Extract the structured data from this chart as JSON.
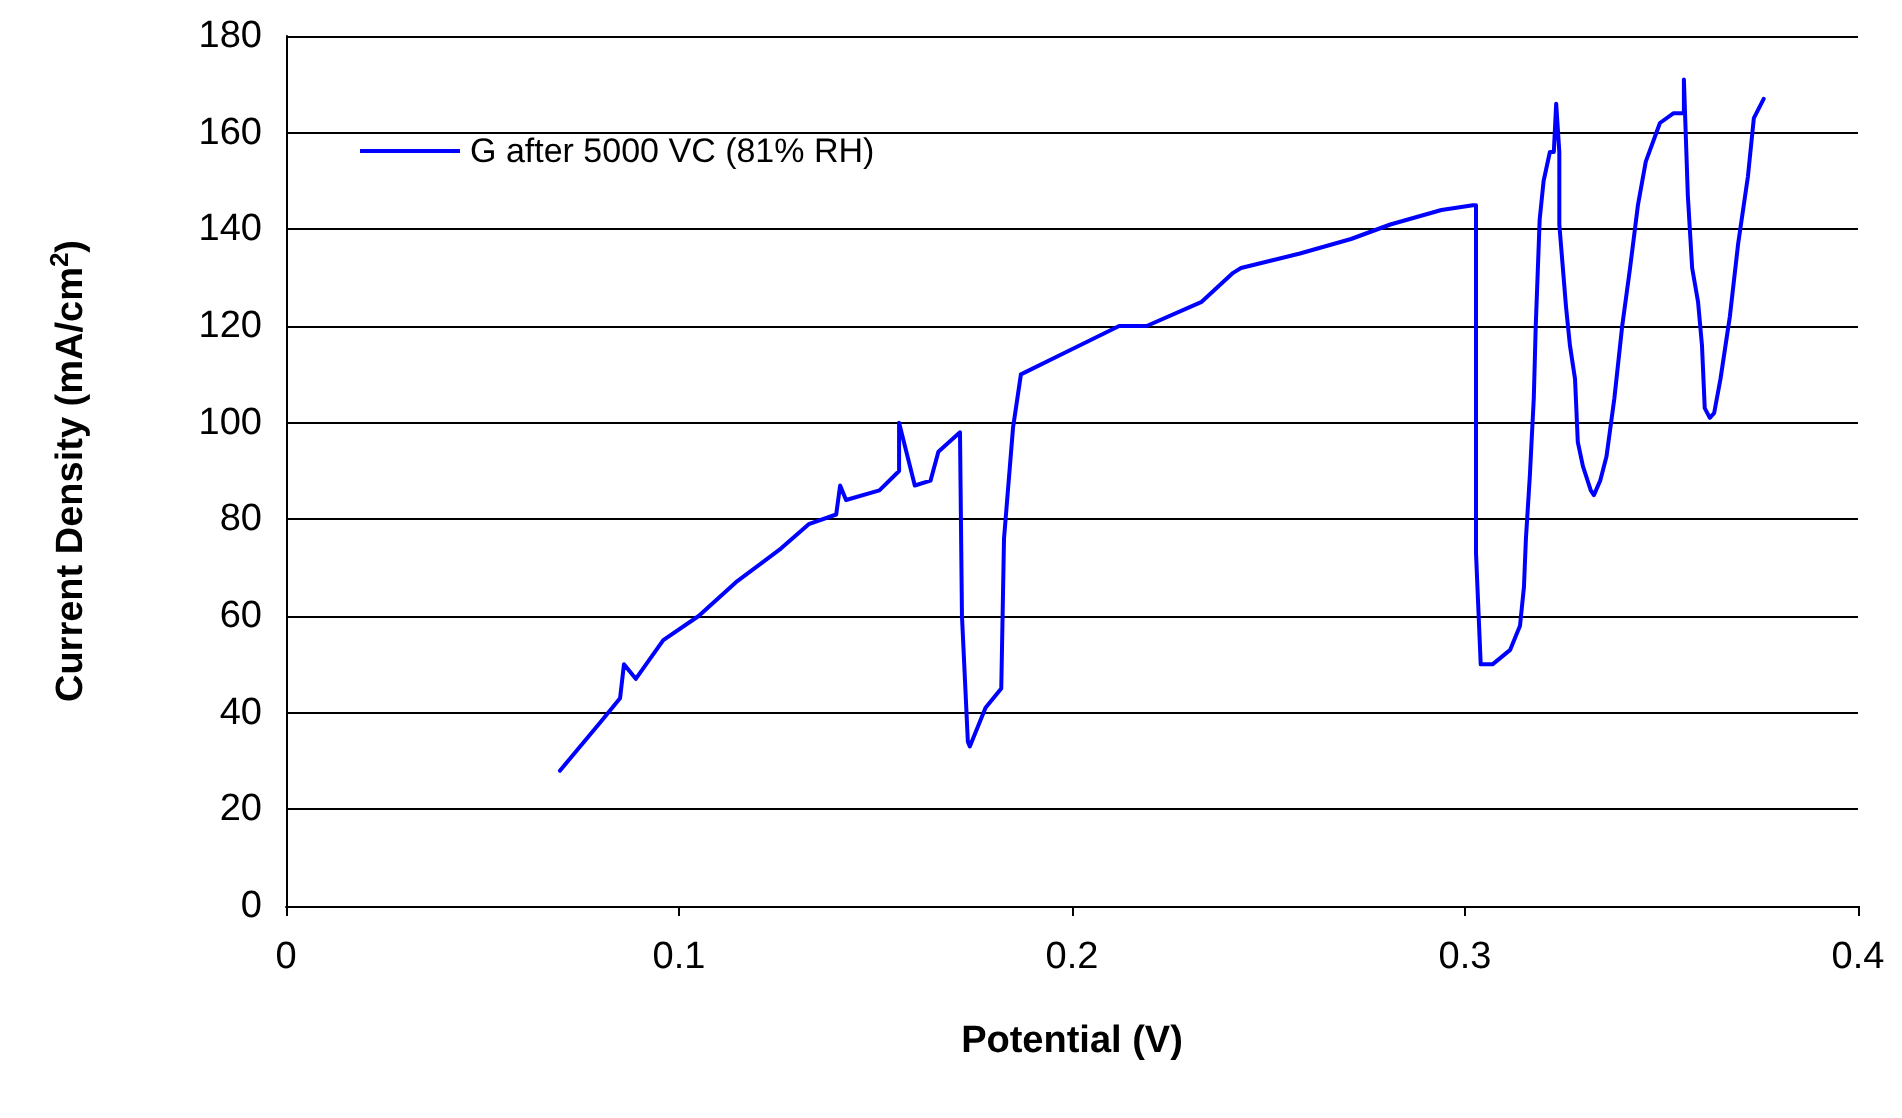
{
  "chart_data": {
    "type": "line",
    "xlabel": "Potential (V)",
    "ylabel": "Current Density (mA/cm$^{2}$)",
    "xlim": [
      0,
      0.4
    ],
    "xticks": [
      0,
      0.1,
      0.2,
      0.3,
      0.4
    ],
    "ylim": [
      0,
      180
    ],
    "yticks": [
      0,
      20,
      40,
      60,
      80,
      100,
      120,
      140,
      160,
      180
    ],
    "grid": "y",
    "legend": "top left",
    "marker": "none",
    "line_style": "solid",
    "series": [
      {
        "name": "G after 5000 VC (81% RH)",
        "color": "#0000ff",
        "x": [
          0.0697,
          0.08,
          0.085,
          0.086,
          0.089,
          0.096,
          0.105,
          0.1145,
          0.126,
          0.133,
          0.14,
          0.141,
          0.1425,
          0.151,
          0.156,
          0.156,
          0.16,
          0.164,
          0.166,
          0.1715,
          0.172,
          0.1735,
          0.174,
          0.178,
          0.182,
          0.1827,
          0.185,
          0.187,
          0.197,
          0.212,
          0.219,
          0.233,
          0.241,
          0.243,
          0.258,
          0.271,
          0.281,
          0.294,
          0.302,
          0.3028,
          0.3028,
          0.304,
          0.307,
          0.3115,
          0.314,
          0.315,
          0.3155,
          0.3165,
          0.3175,
          0.318,
          0.319,
          0.32,
          0.3216,
          0.3226,
          0.3232,
          0.324,
          0.324,
          0.3257,
          0.3267,
          0.328,
          0.3287,
          0.33,
          0.332,
          0.3328,
          0.3344,
          0.336,
          0.338,
          0.34,
          0.342,
          0.344,
          0.346,
          0.3496,
          0.353,
          0.3557,
          0.3557,
          0.3567,
          0.3578,
          0.3593,
          0.3603,
          0.361,
          0.3623,
          0.3634,
          0.365,
          0.3674,
          0.3695,
          0.372,
          0.3735,
          0.376
        ],
        "values": [
          28,
          38,
          43,
          50,
          47,
          55,
          60,
          67,
          74,
          79,
          81,
          87,
          84,
          86,
          90,
          100,
          87,
          88,
          94,
          98,
          60,
          34,
          33,
          41,
          45,
          76,
          99,
          110,
          114,
          120,
          120,
          125,
          131,
          132,
          135,
          138,
          141,
          144,
          145,
          145,
          73,
          50,
          50,
          53,
          58,
          66,
          76,
          89,
          105,
          120,
          142,
          150,
          156,
          156,
          166,
          156,
          141,
          124,
          116,
          109,
          96,
          91,
          86,
          85,
          88,
          93,
          105,
          120,
          132,
          145,
          154,
          162,
          164,
          164,
          171,
          147,
          132,
          125,
          116,
          103,
          101,
          102,
          109,
          122,
          137,
          151,
          163,
          167
        ]
      }
    ]
  }
}
